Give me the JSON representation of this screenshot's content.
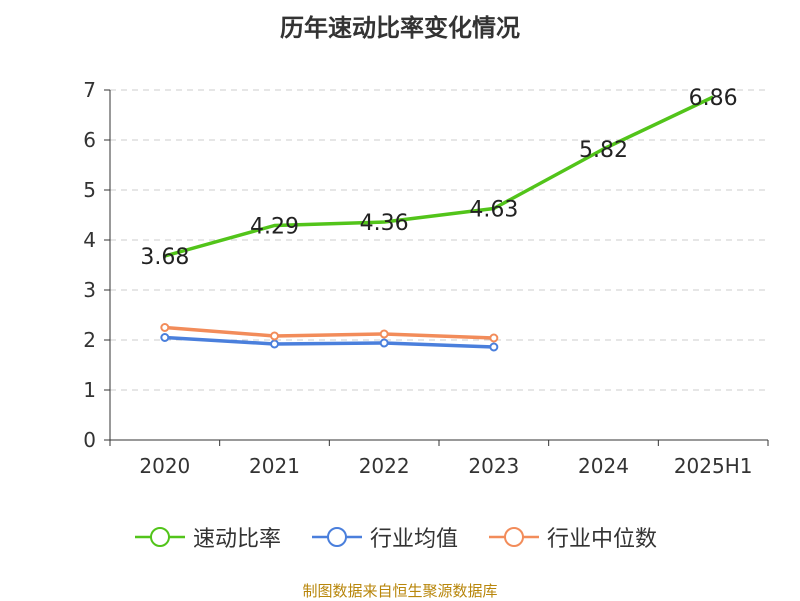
{
  "chart_data": {
    "type": "line",
    "title": "历年速动比率变化情况",
    "categories": [
      "2020",
      "2021",
      "2022",
      "2023",
      "2024",
      "2025H1"
    ],
    "ylim": [
      0,
      7
    ],
    "yticks": [
      0,
      1,
      2,
      3,
      4,
      5,
      6,
      7
    ],
    "grid": true,
    "legend_position": "bottom",
    "series": [
      {
        "name": "速动比率",
        "color": "#52c41a",
        "values": [
          3.68,
          4.29,
          4.36,
          4.63,
          5.82,
          6.86
        ],
        "labels": true
      },
      {
        "name": "行业均值",
        "color": "#4a7fdc",
        "values": [
          2.05,
          1.92,
          1.94,
          1.86,
          null,
          null
        ],
        "labels": false
      },
      {
        "name": "行业中位数",
        "color": "#f28c5a",
        "values": [
          2.25,
          2.08,
          2.12,
          2.04,
          null,
          null
        ],
        "labels": false
      }
    ]
  },
  "source": "制图数据来自恒生聚源数据库"
}
